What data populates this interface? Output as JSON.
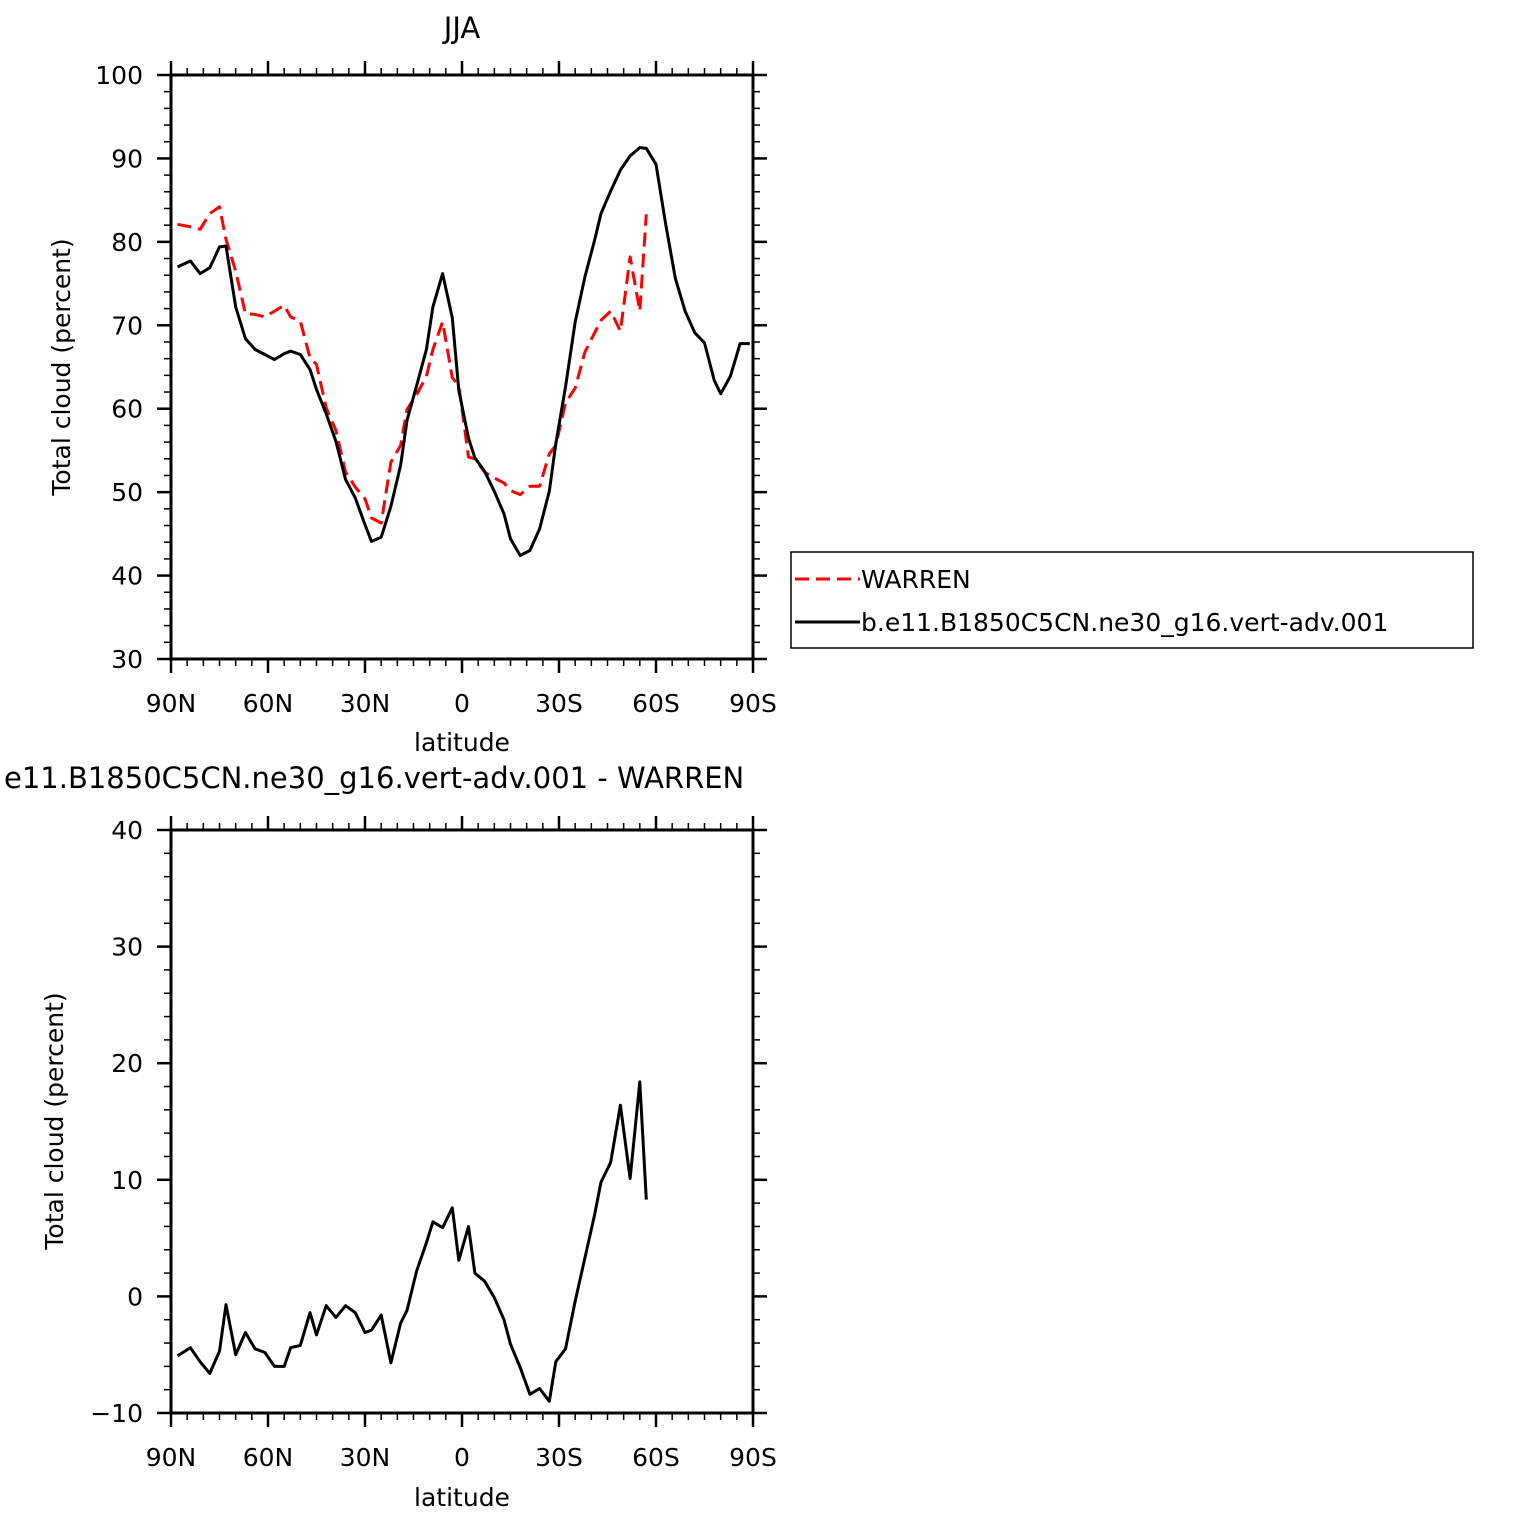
{
  "chart_data": [
    {
      "type": "line",
      "title": "JJA",
      "xlabel": "latitude",
      "ylabel": "Total cloud (percent)",
      "xlim": [
        90,
        -90
      ],
      "ylim": [
        30,
        100
      ],
      "xticks": [
        90,
        60,
        30,
        0,
        -30,
        -60,
        -90
      ],
      "xtick_labels": [
        "90N",
        "60N",
        "30N",
        "0",
        "30S",
        "60S",
        "90S"
      ],
      "yticks": [
        30,
        40,
        50,
        60,
        70,
        80,
        90,
        100
      ],
      "ytick_labels": [
        "30",
        "40",
        "50",
        "60",
        "70",
        "80",
        "90",
        "100"
      ],
      "legend_position": "right",
      "series": [
        {
          "name": "WARREN",
          "color": "#ff0000",
          "dash": "dashed",
          "x": [
            88,
            84,
            81,
            78,
            75,
            73,
            70,
            67,
            64,
            61,
            58,
            55,
            53,
            50,
            47,
            45,
            42,
            39,
            36,
            33,
            30,
            28,
            25,
            22,
            19,
            17,
            14,
            11,
            9,
            6,
            3,
            1,
            -2,
            -4,
            -7,
            -10,
            -13,
            -15,
            -18,
            -21,
            -24,
            -27,
            -29,
            -32,
            -35,
            -38,
            -41,
            -43,
            -46,
            -49,
            -52,
            -55,
            -57
          ],
          "y": [
            82.1,
            81.8,
            81.5,
            83.4,
            84.2,
            80.3,
            76.5,
            71.4,
            71.3,
            71.0,
            71.7,
            72.4,
            71.0,
            70.5,
            66.1,
            65.3,
            60.1,
            57.4,
            52.4,
            50.6,
            49.2,
            46.9,
            46.3,
            53.6,
            55.6,
            59.9,
            61.7,
            63.9,
            67.1,
            70.4,
            63.7,
            62.8,
            54.2,
            54.0,
            52.4,
            51.7,
            51.1,
            50.2,
            49.7,
            50.7,
            50.7,
            54.6,
            55.6,
            60.7,
            62.5,
            66.8,
            69.1,
            70.6,
            71.7,
            69.3,
            78.2,
            71.7,
            83.3
          ]
        },
        {
          "name": "b.e11.B1850C5CN.ne30_g16.vert-adv.001",
          "color": "#000000",
          "dash": "solid",
          "x": [
            88,
            84,
            81,
            78,
            75,
            73,
            70,
            67,
            64,
            61,
            58,
            55,
            53,
            50,
            47,
            45,
            42,
            39,
            36,
            33,
            30,
            28,
            25,
            22,
            19,
            17,
            14,
            11,
            9,
            6,
            3,
            1,
            -2,
            -4,
            -7,
            -10,
            -13,
            -15,
            -18,
            -21,
            -24,
            -27,
            -29,
            -32,
            -35,
            -38,
            -41,
            -43,
            -46,
            -49,
            -52,
            -55,
            -57,
            -60,
            -63,
            -66,
            -69,
            -72,
            -75,
            -78,
            -80,
            -83,
            -86,
            -89
          ],
          "y": [
            77.0,
            77.7,
            76.2,
            76.9,
            79.4,
            79.5,
            72.2,
            68.4,
            67.1,
            66.5,
            65.9,
            66.6,
            66.9,
            66.5,
            64.7,
            62.3,
            59.4,
            56.1,
            51.5,
            49.3,
            46.1,
            44.1,
            44.6,
            48.3,
            53.2,
            58.6,
            62.8,
            67.1,
            72.2,
            76.2,
            70.9,
            62.2,
            56.5,
            54.1,
            52.5,
            50.1,
            47.4,
            44.4,
            42.4,
            43.0,
            45.6,
            50.1,
            55.8,
            62.6,
            70.4,
            75.8,
            80.2,
            83.4,
            86.1,
            88.6,
            90.3,
            91.3,
            91.2,
            89.3,
            82.1,
            75.6,
            71.7,
            69.1,
            67.9,
            63.4,
            61.8,
            63.9,
            67.8,
            67.8
          ]
        }
      ]
    },
    {
      "type": "line",
      "title": "e11.B1850C5CN.ne30_g16.vert-adv.001 - WARREN",
      "xlabel": "latitude",
      "ylabel": "Total cloud (percent)",
      "xlim": [
        90,
        -90
      ],
      "ylim": [
        -10,
        40
      ],
      "xticks": [
        90,
        60,
        30,
        0,
        -30,
        -60,
        -90
      ],
      "xtick_labels": [
        "90N",
        "60N",
        "30N",
        "0",
        "30S",
        "60S",
        "90S"
      ],
      "yticks": [
        -10,
        0,
        10,
        20,
        30,
        40
      ],
      "ytick_labels": [
        "−10",
        "0",
        "10",
        "20",
        "30",
        "40"
      ],
      "series": [
        {
          "color": "#000000",
          "dash": "solid",
          "x": [
            88,
            84,
            81,
            78,
            75,
            73,
            70,
            67,
            64,
            61,
            58,
            55,
            53,
            50,
            47,
            45,
            42,
            39,
            36,
            33,
            30,
            28,
            25,
            22,
            19,
            17,
            14,
            11,
            9,
            6,
            3,
            1,
            -2,
            -4,
            -7,
            -10,
            -13,
            -15,
            -18,
            -21,
            -24,
            -27,
            -29,
            -32,
            -35,
            -38,
            -41,
            -43,
            -46,
            -49,
            -52,
            -55,
            -57
          ],
          "y": [
            -5.1,
            -4.4,
            -5.6,
            -6.6,
            -4.7,
            -0.7,
            -5.0,
            -3.1,
            -4.5,
            -4.8,
            -6.0,
            -6.0,
            -4.4,
            -4.2,
            -1.4,
            -3.3,
            -0.8,
            -1.8,
            -0.8,
            -1.4,
            -3.1,
            -2.9,
            -1.6,
            -5.7,
            -2.3,
            -1.2,
            2.2,
            4.6,
            6.4,
            5.9,
            7.6,
            3.1,
            6.0,
            2.0,
            1.3,
            -0.1,
            -2.0,
            -4.1,
            -6.1,
            -8.4,
            -7.9,
            -9.0,
            -5.6,
            -4.5,
            -0.4,
            3.3,
            7.0,
            9.8,
            11.5,
            16.4,
            10.1,
            18.4,
            8.3
          ]
        }
      ]
    }
  ]
}
